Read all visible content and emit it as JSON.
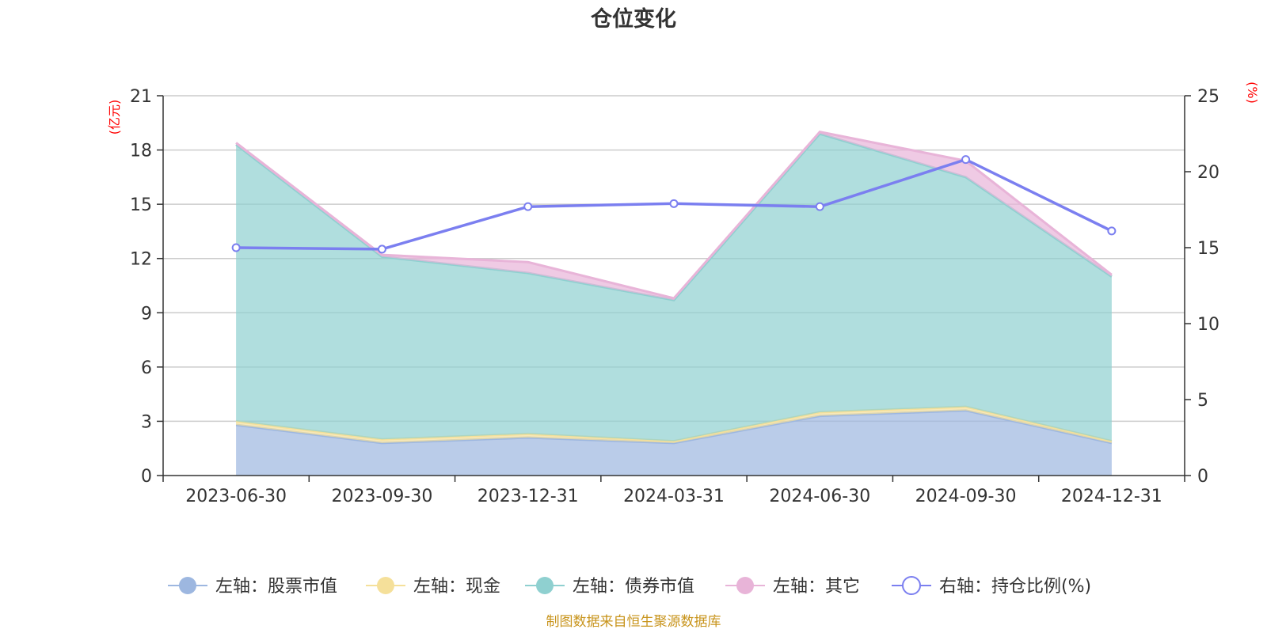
{
  "chart_data": {
    "type": "area",
    "title": "仓位变化",
    "left_axis_unit": "(亿元)",
    "right_axis_unit": "(%)",
    "categories": [
      "2023-06-30",
      "2023-09-30",
      "2023-12-31",
      "2024-03-31",
      "2024-06-30",
      "2024-09-30",
      "2024-12-31"
    ],
    "ylim_left": [
      0,
      21
    ],
    "yticks_left": [
      0,
      3,
      6,
      9,
      12,
      15,
      18,
      21
    ],
    "ylim_right": [
      0,
      25
    ],
    "yticks_right": [
      0,
      5,
      10,
      15,
      20,
      25
    ],
    "stacked": true,
    "series": [
      {
        "name": "左轴：股票市值",
        "axis": "left",
        "color": "#9db7e0",
        "values": [
          2.8,
          1.8,
          2.1,
          1.8,
          3.3,
          3.6,
          1.8
        ]
      },
      {
        "name": "左轴：现金",
        "axis": "left",
        "color": "#f5e09a",
        "values": [
          0.2,
          0.2,
          0.2,
          0.1,
          0.2,
          0.2,
          0.1
        ]
      },
      {
        "name": "左轴：债券市值",
        "axis": "left",
        "color": "#8fd0d0",
        "values": [
          15.3,
          10.1,
          8.9,
          7.8,
          15.4,
          12.7,
          9.1
        ]
      },
      {
        "name": "左轴：其它",
        "axis": "left",
        "color": "#e8b4d8",
        "values": [
          0.1,
          0.1,
          0.6,
          0.1,
          0.1,
          0.9,
          0.1
        ]
      },
      {
        "name": "右轴：持仓比例(%)",
        "axis": "right",
        "color": "#7b7ff0",
        "line": true,
        "values": [
          15.0,
          14.9,
          17.7,
          17.9,
          17.7,
          20.8,
          16.1
        ]
      }
    ],
    "grid": true,
    "legend_position": "bottom",
    "source_note": "制图数据来自恒生聚源数据库"
  }
}
